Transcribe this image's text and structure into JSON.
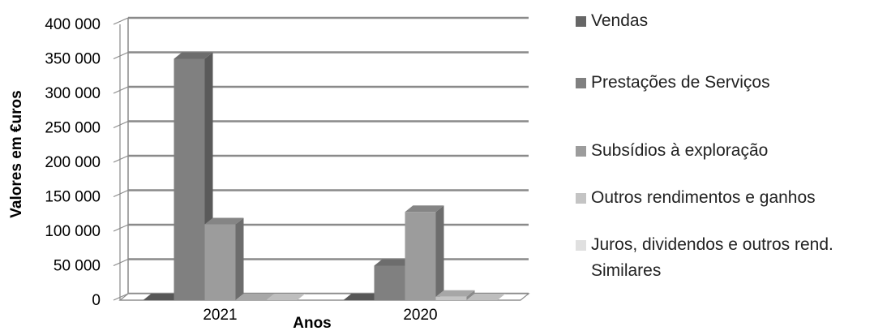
{
  "chart_data": {
    "type": "bar",
    "style": "3d-clustered-column",
    "categories": [
      "2021",
      "2020"
    ],
    "series": [
      {
        "name": "Vendas",
        "values": [
          0,
          0
        ],
        "color": "#666666"
      },
      {
        "name": "Prestações de Serviços",
        "values": [
          350000,
          50000
        ],
        "color": "#808080"
      },
      {
        "name": "Subsídios à exploração",
        "values": [
          110000,
          128000
        ],
        "color": "#9c9c9c"
      },
      {
        "name": "Outros rendimentos e ganhos",
        "values": [
          0,
          5000
        ],
        "color": "#c4c4c4"
      },
      {
        "name": "Juros, dividendos e outros rend. Similares",
        "values": [
          0,
          0
        ],
        "color": "#e0e0e0"
      }
    ],
    "title": "",
    "xlabel": "Anos",
    "ylabel": "Valores em €uros",
    "ylim": [
      0,
      400000
    ],
    "yticks": [
      "0",
      "50 000",
      "100 000",
      "150 000",
      "200 000",
      "250 000",
      "300 000",
      "350 000",
      "400 000"
    ],
    "grid": true,
    "legend_position": "right"
  }
}
